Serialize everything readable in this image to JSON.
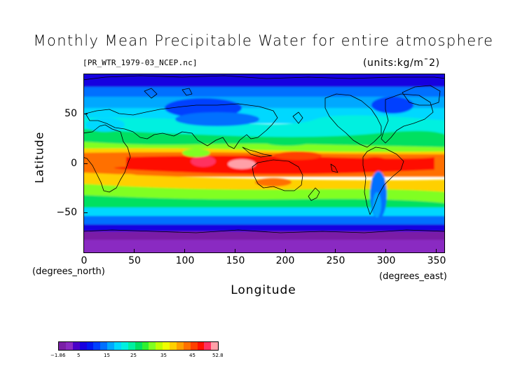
{
  "title": "Monthly Mean Precipitable Water for entire atmosphere",
  "filename": "[PR_WTR_1979-03_NCEP.nc]",
  "units": "(units:kg/m¯2)",
  "axes": {
    "ylabel": "Latitude",
    "ylabel_unit": "(degrees_north)",
    "xlabel": "Longitude",
    "xlabel_unit": "(degrees_east)",
    "yticks": [
      "50",
      "0",
      "−50"
    ],
    "xticks": [
      "0",
      "50",
      "100",
      "150",
      "200",
      "250",
      "300",
      "350"
    ],
    "lon_range": [
      0,
      357.5
    ],
    "lat_range": [
      -90,
      90
    ]
  },
  "colorbar": {
    "labels": [
      "−1.86",
      "5",
      "15",
      "25",
      "35",
      "45",
      "52.8"
    ],
    "colors": [
      "#7a1fa6",
      "#8a2bc2",
      "#4a00c8",
      "#1800e0",
      "#0018f0",
      "#0040ff",
      "#0070ff",
      "#00a8ff",
      "#00d8ff",
      "#00f0e0",
      "#00f0a0",
      "#00e060",
      "#30f030",
      "#80ff20",
      "#c0ff00",
      "#f0ff00",
      "#ffd000",
      "#ffa000",
      "#ff7000",
      "#ff4000",
      "#ff1000",
      "#ff3060",
      "#ffa0a8"
    ]
  }
}
